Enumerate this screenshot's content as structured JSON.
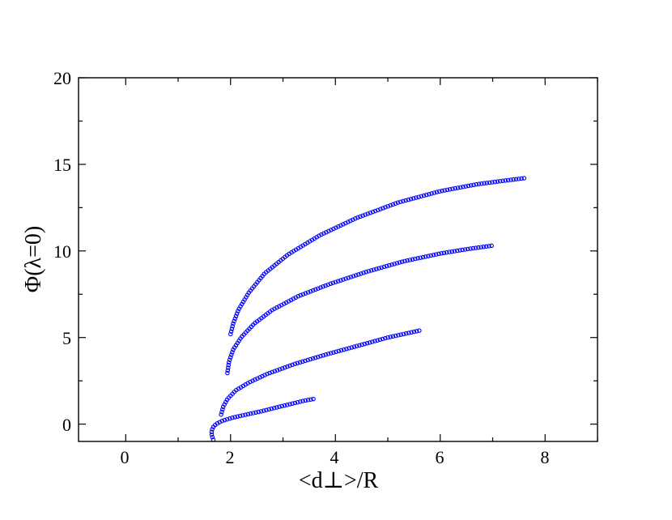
{
  "chart_data": {
    "type": "scatter",
    "xlabel": "<d⊥>/R",
    "ylabel": "Φ(λ=0)",
    "xlim": [
      -0.9,
      9.0
    ],
    "ylim": [
      -1.0,
      20.0
    ],
    "x_ticks": [
      0,
      2,
      4,
      6,
      8
    ],
    "y_ticks": [
      0,
      5,
      10,
      15,
      20
    ],
    "x_tick_labels": [
      "0",
      "2",
      "4",
      "6",
      "8"
    ],
    "y_tick_labels": [
      "0",
      "5",
      "10",
      "15",
      "20"
    ],
    "grid": false,
    "legend": "none",
    "marker": "open-circle",
    "color": "#0000ff",
    "series": [
      {
        "points": [
          [
            1.67,
            -0.9
          ],
          [
            1.64,
            -0.65
          ],
          [
            1.64,
            -0.4
          ],
          [
            1.66,
            -0.2
          ],
          [
            1.72,
            0.0
          ],
          [
            1.85,
            0.2
          ],
          [
            2.05,
            0.38
          ],
          [
            2.3,
            0.55
          ],
          [
            2.6,
            0.75
          ],
          [
            2.9,
            0.98
          ],
          [
            3.2,
            1.2
          ],
          [
            3.4,
            1.35
          ],
          [
            3.58,
            1.45
          ]
        ]
      },
      {
        "points": [
          [
            1.82,
            0.55
          ],
          [
            1.86,
            1.0
          ],
          [
            1.94,
            1.45
          ],
          [
            2.1,
            1.95
          ],
          [
            2.35,
            2.4
          ],
          [
            2.7,
            2.9
          ],
          [
            3.2,
            3.45
          ],
          [
            3.8,
            4.0
          ],
          [
            4.4,
            4.5
          ],
          [
            5.0,
            5.0
          ],
          [
            5.6,
            5.4
          ]
        ]
      },
      {
        "points": [
          [
            1.94,
            2.95
          ],
          [
            1.97,
            3.6
          ],
          [
            2.05,
            4.3
          ],
          [
            2.2,
            5.0
          ],
          [
            2.45,
            5.8
          ],
          [
            2.8,
            6.6
          ],
          [
            3.3,
            7.4
          ],
          [
            3.9,
            8.1
          ],
          [
            4.6,
            8.8
          ],
          [
            5.3,
            9.4
          ],
          [
            6.0,
            9.85
          ],
          [
            6.5,
            10.1
          ],
          [
            6.98,
            10.3
          ]
        ]
      },
      {
        "points": [
          [
            2.0,
            5.2
          ],
          [
            2.05,
            5.8
          ],
          [
            2.15,
            6.6
          ],
          [
            2.35,
            7.6
          ],
          [
            2.65,
            8.7
          ],
          [
            3.1,
            9.8
          ],
          [
            3.7,
            10.9
          ],
          [
            4.4,
            11.9
          ],
          [
            5.2,
            12.8
          ],
          [
            6.0,
            13.45
          ],
          [
            6.7,
            13.85
          ],
          [
            7.2,
            14.05
          ],
          [
            7.6,
            14.2
          ]
        ]
      }
    ]
  }
}
